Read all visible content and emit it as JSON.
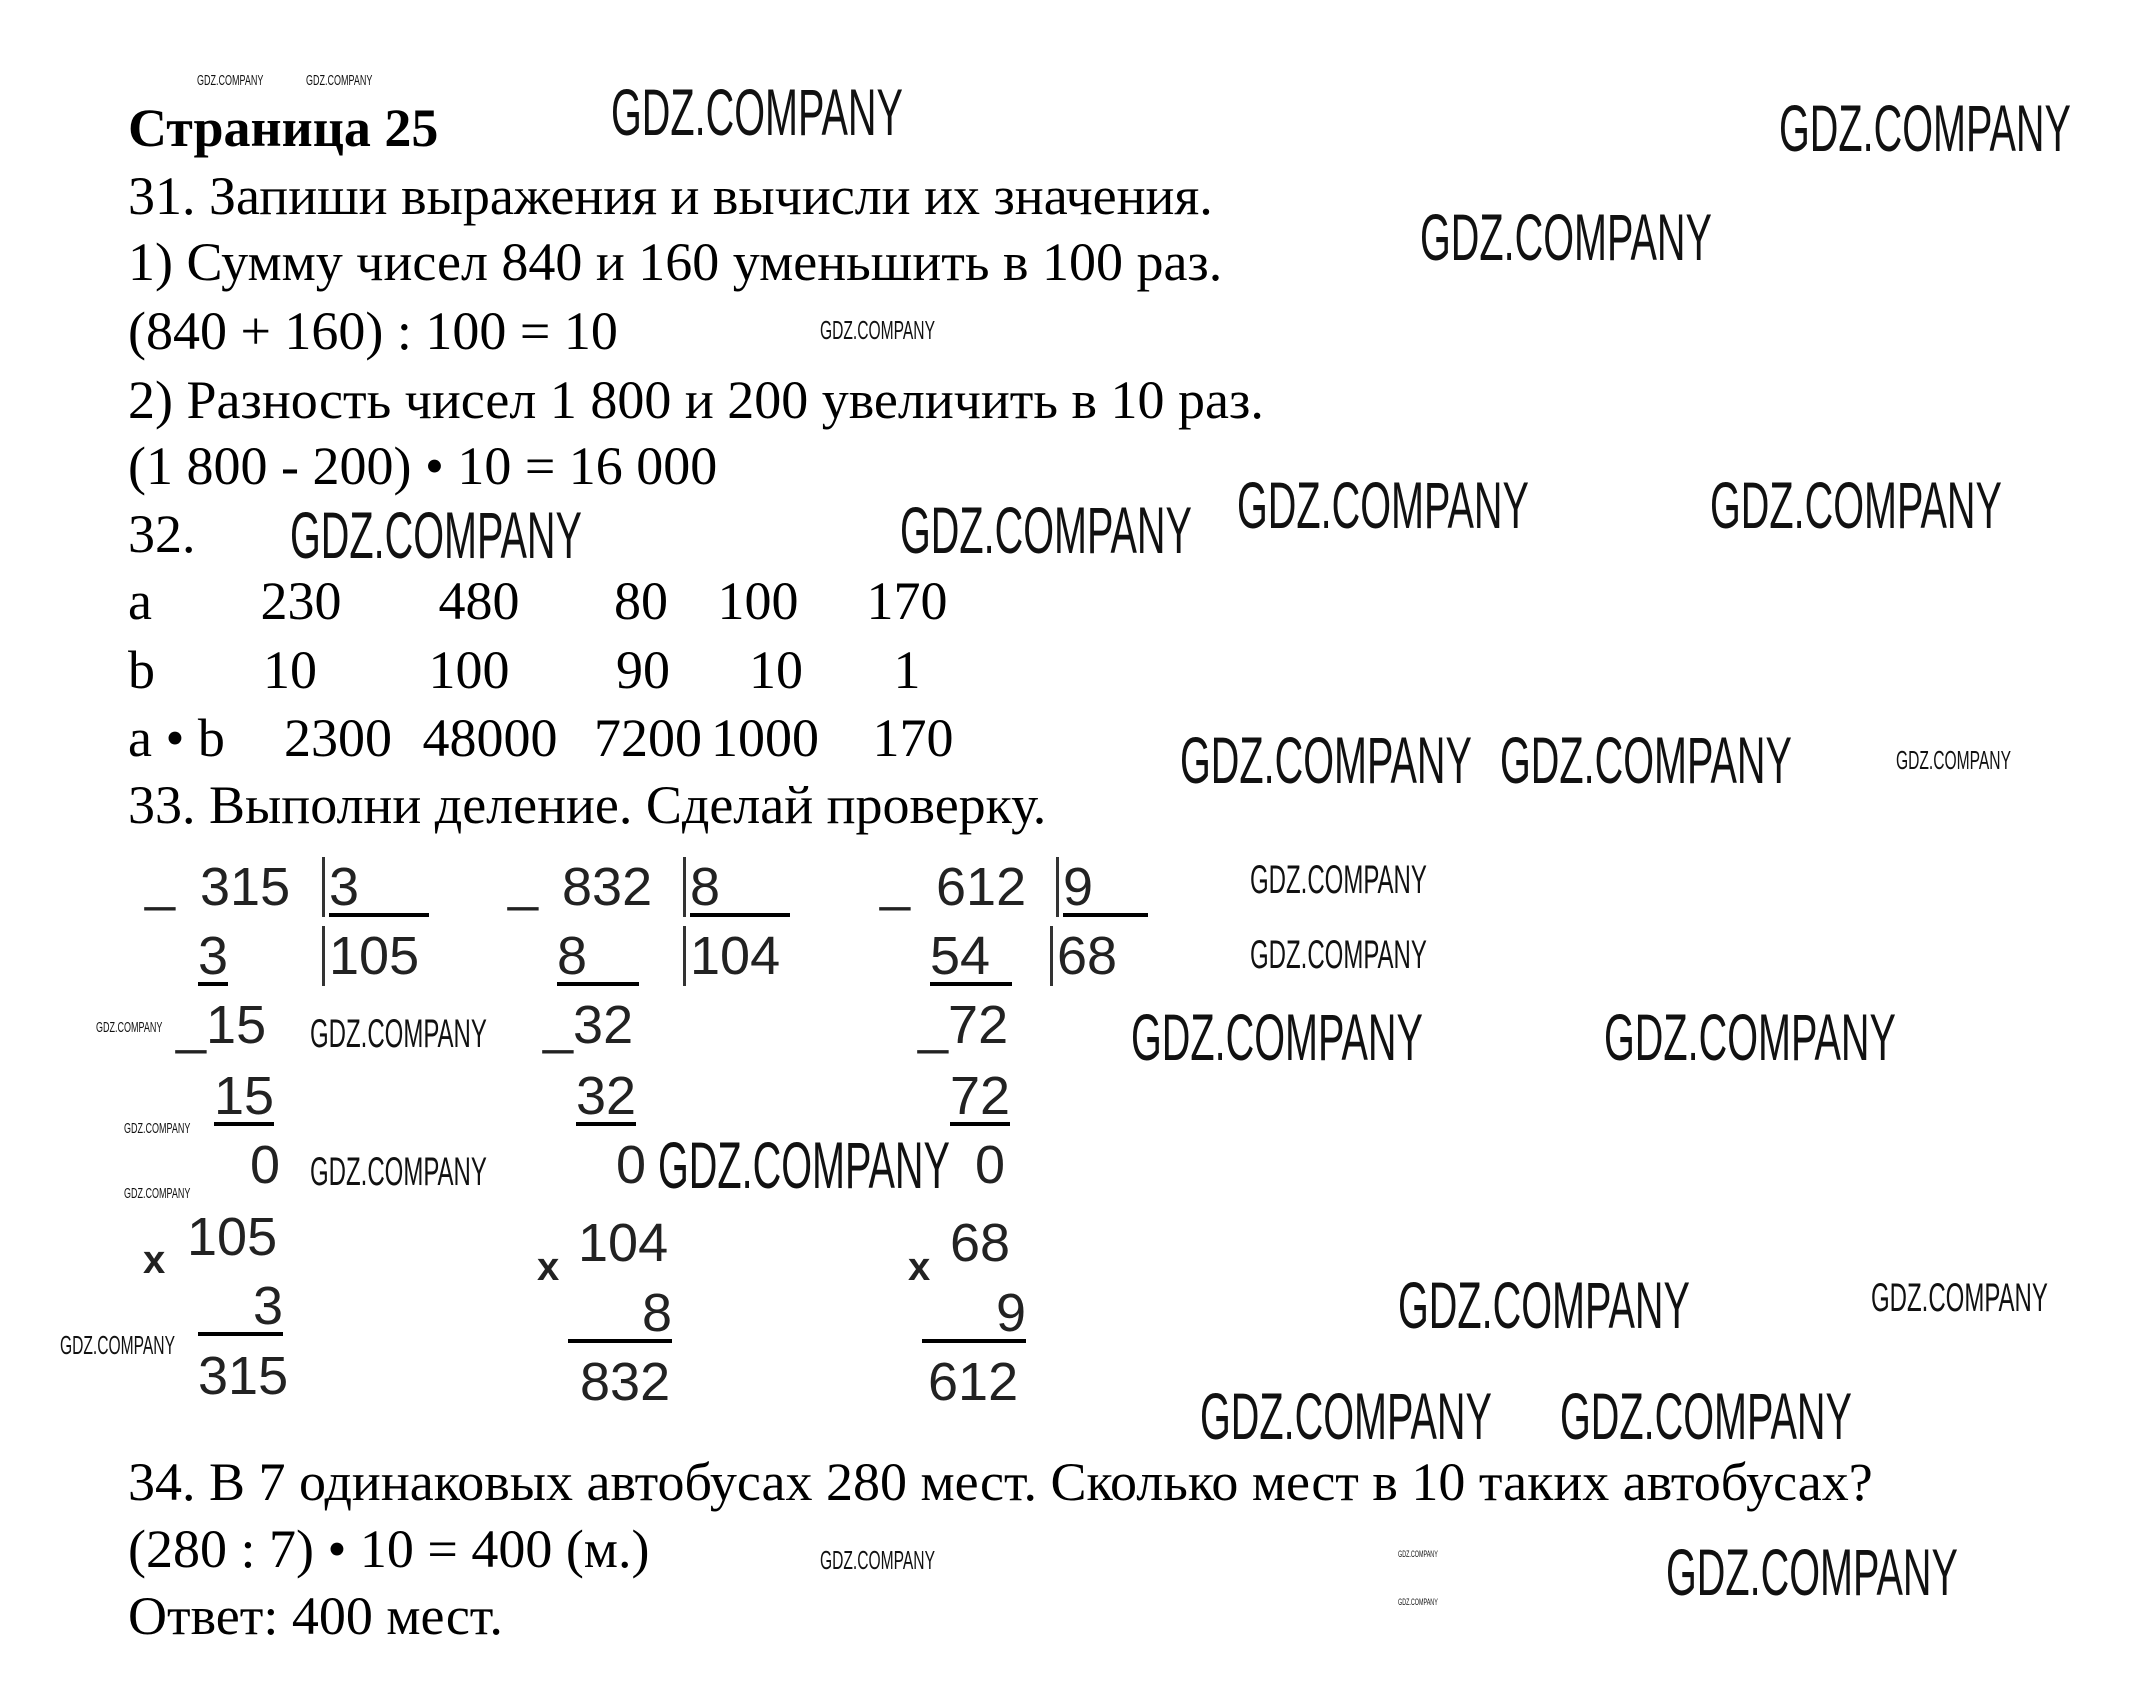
{
  "page_title": "Страница 25",
  "watermark": "GDZ.COMPANY",
  "task31": {
    "heading": "31. Запиши выражения и вычисли их значения.",
    "item1": "1) Сумму чисел 840 и 160 уменьшить в 100 раз.",
    "answer1": "(840 + 160) : 100 = 10",
    "item2": "2) Разность чисел 1 800 и 200 увеличить в 10 раз.",
    "answer2": "(1 800 - 200) • 10 = 16 000"
  },
  "task32": {
    "heading": "32.",
    "rows": [
      {
        "label": "a",
        "values": [
          "230",
          "480",
          "80",
          "100",
          "170"
        ]
      },
      {
        "label": "b",
        "values": [
          "10",
          "100",
          "90",
          "10",
          "1"
        ]
      },
      {
        "label": "a • b",
        "values": [
          "2300",
          "48000",
          "7200",
          "1000",
          "170"
        ]
      }
    ]
  },
  "task33": {
    "heading": "33. Выполни деление. Сделай проверку.",
    "columns": [
      {
        "dividend": "315",
        "divisor": "3",
        "first_sub": "3",
        "quotient": "105",
        "second": "15",
        "second_sub": "15",
        "remainder": "0",
        "check_a": "105",
        "check_b": "3",
        "check_result": "315"
      },
      {
        "dividend": "832",
        "divisor": "8",
        "first_sub": "8",
        "quotient": "104",
        "second": "32",
        "second_sub": "32",
        "remainder": "0",
        "check_a": "104",
        "check_b": "8",
        "check_result": "832"
      },
      {
        "dividend": "612",
        "divisor": "9",
        "first_sub": "54",
        "quotient": "68",
        "second": "72",
        "second_sub": "72",
        "remainder": "0",
        "check_a": "68",
        "check_b": "9",
        "check_result": "612"
      }
    ],
    "minus_sign": "_",
    "times_sign": "x"
  },
  "task34": {
    "heading": "34. В 7 одинаковых автобусах 280 мест. Сколько мест в 10 таких автобусах?",
    "solution": "(280 : 7) • 10 = 400 (м.)",
    "answer": "Ответ: 400 мест."
  }
}
